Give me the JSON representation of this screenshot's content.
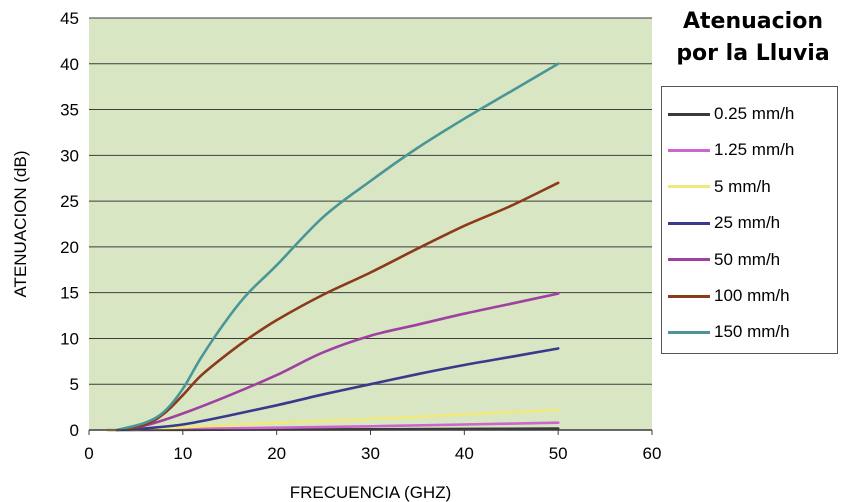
{
  "chart_data": {
    "type": "line",
    "title": "Atenuacion por la Lluvia",
    "title_lines": [
      "Atenuacion",
      "por la Lluvia"
    ],
    "xlabel": "FRECUENCIA (GHZ)",
    "ylabel": "ATENUACION (dB)",
    "xlim": [
      0,
      60
    ],
    "ylim": [
      0,
      45
    ],
    "xticks": [
      "0",
      "10",
      "20",
      "30",
      "40",
      "50",
      "60"
    ],
    "yticks": [
      "0",
      "5",
      "10",
      "15",
      "20",
      "25",
      "30",
      "35",
      "40",
      "45"
    ],
    "grid": "horizontal",
    "plot_background": "#d8e6c4",
    "legend_position": "right",
    "series": [
      {
        "name": "0.25 mm/h",
        "color": "#3a3a3a",
        "x": [
          2,
          10,
          20,
          30,
          40,
          50
        ],
        "y": [
          0,
          0.02,
          0.05,
          0.08,
          0.12,
          0.15
        ]
      },
      {
        "name": "1.25 mm/h",
        "color": "#cc66cc",
        "x": [
          2,
          10,
          20,
          30,
          40,
          50
        ],
        "y": [
          0,
          0.1,
          0.25,
          0.4,
          0.6,
          0.8
        ]
      },
      {
        "name": "5 mm/h",
        "color": "#f0e87a",
        "x": [
          2,
          5,
          10,
          20,
          30,
          40,
          50
        ],
        "y": [
          0,
          0.05,
          0.3,
          0.8,
          1.2,
          1.7,
          2.2
        ]
      },
      {
        "name": "25 mm/h",
        "color": "#3a3a8c",
        "x": [
          3,
          5,
          10,
          15,
          20,
          25,
          30,
          35,
          40,
          45,
          50
        ],
        "y": [
          0,
          0.1,
          0.6,
          1.6,
          2.7,
          3.9,
          5.0,
          6.1,
          7.1,
          8.0,
          8.9
        ]
      },
      {
        "name": "50 mm/h",
        "color": "#a040a0",
        "x": [
          3,
          6,
          10,
          15,
          20,
          25,
          30,
          35,
          40,
          45,
          50
        ],
        "y": [
          0,
          0.5,
          1.8,
          3.8,
          6.0,
          8.5,
          10.3,
          11.5,
          12.7,
          13.8,
          14.9
        ]
      },
      {
        "name": "100 mm/h",
        "color": "#8b3a1a",
        "x": [
          3,
          6,
          8,
          10,
          12,
          15,
          17,
          20,
          25,
          30,
          35,
          40,
          45,
          50
        ],
        "y": [
          0,
          0.6,
          1.8,
          3.8,
          6.0,
          8.5,
          10.0,
          12.0,
          14.8,
          17.2,
          19.8,
          22.3,
          24.5,
          27.0
        ]
      },
      {
        "name": "150 mm/h",
        "color": "#4a9696",
        "x": [
          3,
          6,
          8,
          10,
          12,
          15,
          17,
          20,
          25,
          30,
          35,
          40,
          45,
          50
        ],
        "y": [
          0,
          0.8,
          2.0,
          4.5,
          8.0,
          12.5,
          15.0,
          18.0,
          23.3,
          27.2,
          30.8,
          34.0,
          37.0,
          40.0
        ]
      }
    ]
  }
}
